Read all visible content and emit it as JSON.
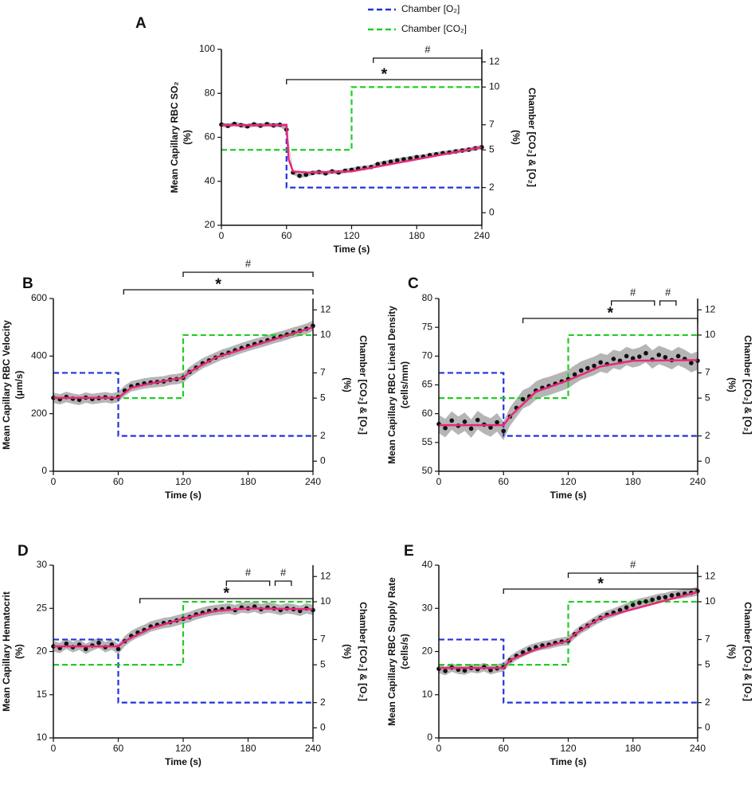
{
  "chart_data": [
    {
      "type": "line",
      "panel": "A",
      "ylabel": [
        "Mean Capillary RBC SO₂",
        "(%)"
      ],
      "y2label": [
        "Chamber [CO₂] & [O₂]",
        "(%)"
      ],
      "xlabel": "Time (s)",
      "xlim": [
        0,
        240
      ],
      "xticks": [
        0,
        60,
        120,
        180,
        240
      ],
      "ylim": [
        20,
        100
      ],
      "yticks": [
        20,
        40,
        60,
        80,
        100
      ],
      "y2lim": [
        -1,
        13
      ],
      "y2ticks": [
        0,
        2,
        5,
        7,
        10,
        12
      ],
      "series": [
        {
          "name": "Chamber [O₂]",
          "color": "#2233dd",
          "axis": "y2",
          "x": [
            0,
            60,
            60,
            240
          ],
          "values": [
            7,
            7,
            2,
            2
          ]
        },
        {
          "name": "Chamber [CO₂]",
          "color": "#22cc22",
          "axis": "y2",
          "x": [
            0,
            120,
            120,
            240
          ],
          "values": [
            5,
            5,
            10,
            10
          ]
        }
      ],
      "points": {
        "color": "#111111",
        "band_color": "#b5b5b5",
        "error": 1,
        "x": [
          0,
          6,
          12,
          18,
          24,
          30,
          36,
          42,
          48,
          54,
          60,
          66,
          72,
          78,
          84,
          90,
          96,
          102,
          108,
          114,
          120,
          126,
          132,
          138,
          144,
          150,
          156,
          162,
          168,
          174,
          180,
          186,
          192,
          198,
          204,
          210,
          216,
          222,
          228,
          234,
          240
        ],
        "values": [
          65.8,
          65.2,
          66.1,
          65.5,
          65.0,
          65.9,
          65.3,
          66.0,
          65.4,
          65.7,
          63.5,
          44.0,
          42.5,
          43.0,
          43.8,
          44.2,
          43.6,
          44.5,
          44.0,
          44.8,
          45.2,
          45.8,
          46.1,
          46.5,
          47.8,
          48.3,
          48.9,
          49.5,
          50.0,
          50.4,
          51.0,
          51.2,
          51.9,
          52.3,
          52.8,
          53.1,
          53.6,
          54.0,
          54.4,
          55.0,
          55.5
        ]
      },
      "fit": {
        "color": "#e8287a",
        "x": [
          0,
          60,
          62,
          66,
          80,
          120,
          240
        ],
        "values": [
          65.5,
          65.5,
          50,
          44.5,
          44,
          44.5,
          55.5
        ]
      },
      "brackets": [
        {
          "x": [
            60,
            240
          ],
          "label": "*"
        },
        {
          "x": [
            140,
            240
          ],
          "label": "#"
        }
      ]
    },
    {
      "type": "line",
      "panel": "B",
      "ylabel": [
        "Mean Capillary RBC Velocity",
        "(μm/s)"
      ],
      "y2label": [
        "Chamber [CO₂] & [O₂]",
        "(%)"
      ],
      "xlabel": "Time (s)",
      "xlim": [
        0,
        240
      ],
      "xticks": [
        0,
        60,
        120,
        180,
        240
      ],
      "ylim": [
        0,
        600
      ],
      "yticks": [
        0,
        200,
        400,
        600
      ],
      "y2lim": [
        -0.8,
        12.9
      ],
      "y2ticks": [
        0,
        2,
        5,
        7,
        10,
        12
      ],
      "series": [
        {
          "color": "#2233dd",
          "axis": "y2",
          "x": [
            0,
            60,
            60,
            240
          ],
          "values": [
            7,
            7,
            2,
            2
          ]
        },
        {
          "color": "#22cc22",
          "axis": "y2",
          "x": [
            0,
            120,
            120,
            240
          ],
          "values": [
            5,
            5,
            10,
            10
          ]
        }
      ],
      "points": {
        "color": "#111111",
        "band_color": "#b5b5b5",
        "error": 18,
        "x": [
          0,
          6,
          12,
          18,
          24,
          30,
          36,
          42,
          48,
          54,
          60,
          66,
          72,
          78,
          84,
          90,
          96,
          102,
          108,
          114,
          120,
          126,
          132,
          138,
          144,
          150,
          156,
          162,
          168,
          174,
          180,
          186,
          192,
          198,
          204,
          210,
          216,
          222,
          228,
          234,
          240
        ],
        "values": [
          255,
          250,
          258,
          252,
          248,
          256,
          251,
          254,
          257,
          253,
          258,
          280,
          295,
          300,
          305,
          308,
          310,
          312,
          318,
          320,
          325,
          345,
          360,
          375,
          385,
          395,
          405,
          412,
          420,
          428,
          435,
          442,
          448,
          455,
          462,
          468,
          475,
          482,
          488,
          495,
          505
        ]
      },
      "fit": {
        "color": "#e8287a",
        "x": [
          0,
          60,
          72,
          90,
          120,
          126,
          150,
          240
        ],
        "values": [
          255,
          255,
          290,
          305,
          325,
          345,
          395,
          500
        ]
      },
      "brackets": [
        {
          "x": [
            65,
            240
          ],
          "label": "*"
        },
        {
          "x": [
            120,
            240
          ],
          "label": "#"
        }
      ]
    },
    {
      "type": "line",
      "panel": "C",
      "ylabel": [
        "Mean Capillary RBC Lineal Density",
        "(cells/mm)"
      ],
      "y2label": [
        "Chamber [CO₂] & [O₂]",
        "(%)"
      ],
      "xlabel": "Time (s)",
      "xlim": [
        0,
        240
      ],
      "xticks": [
        0,
        60,
        120,
        180,
        240
      ],
      "ylim": [
        50,
        80
      ],
      "yticks": [
        50,
        55,
        60,
        65,
        70,
        75,
        80
      ],
      "y2lim": [
        -0.8,
        12.9
      ],
      "y2ticks": [
        0,
        2,
        5,
        7,
        10,
        12
      ],
      "series": [
        {
          "color": "#2233dd",
          "axis": "y2",
          "x": [
            0,
            60,
            60,
            240
          ],
          "values": [
            7,
            7,
            2,
            2
          ]
        },
        {
          "color": "#22cc22",
          "axis": "y2",
          "x": [
            0,
            120,
            120,
            240
          ],
          "values": [
            5,
            5,
            10,
            10
          ]
        }
      ],
      "points": {
        "color": "#111111",
        "band_color": "#b5b5b5",
        "error": 1.6,
        "x": [
          0,
          6,
          12,
          18,
          24,
          30,
          36,
          42,
          48,
          54,
          60,
          66,
          72,
          78,
          84,
          90,
          96,
          102,
          108,
          114,
          120,
          126,
          132,
          138,
          144,
          150,
          156,
          162,
          168,
          174,
          180,
          186,
          192,
          198,
          204,
          210,
          216,
          222,
          228,
          234,
          240
        ],
        "values": [
          58.2,
          57.5,
          58.8,
          57.9,
          58.6,
          57.4,
          58.9,
          58.1,
          57.6,
          58.5,
          57.0,
          59.5,
          61.0,
          62.5,
          63.0,
          64.0,
          64.5,
          64.8,
          65.2,
          65.6,
          66.0,
          66.8,
          67.5,
          67.9,
          68.3,
          68.9,
          68.6,
          69.5,
          69.2,
          70.0,
          69.6,
          69.9,
          70.5,
          69.4,
          70.2,
          69.8,
          69.3,
          70.0,
          69.5,
          68.8,
          69.2
        ]
      },
      "fit": {
        "color": "#e8287a",
        "x": [
          0,
          60,
          66,
          90,
          120,
          150,
          180,
          240
        ],
        "values": [
          58,
          58,
          59.5,
          63.8,
          65.8,
          68.2,
          69.2,
          69.3
        ]
      },
      "brackets": [
        {
          "x": [
            78,
            240
          ],
          "label": "*"
        },
        {
          "x": [
            160,
            200
          ],
          "label": "#"
        },
        {
          "x": [
            205,
            220
          ],
          "label": "#"
        }
      ]
    },
    {
      "type": "line",
      "panel": "D",
      "ylabel": [
        "Mean Capillary Hematocrit",
        "(%)"
      ],
      "y2label": [
        "Chamber [CO₂] & [O₂]",
        "(%)"
      ],
      "xlabel": "Time (s)",
      "xlim": [
        0,
        240
      ],
      "xticks": [
        0,
        60,
        120,
        180,
        240
      ],
      "ylim": [
        10,
        30
      ],
      "yticks": [
        10,
        15,
        20,
        25,
        30
      ],
      "y2lim": [
        -0.8,
        12.9
      ],
      "y2ticks": [
        0,
        2,
        5,
        7,
        10,
        12
      ],
      "series": [
        {
          "color": "#2233dd",
          "axis": "y2",
          "x": [
            0,
            60,
            60,
            240
          ],
          "values": [
            7,
            7,
            2,
            2
          ]
        },
        {
          "color": "#22cc22",
          "axis": "y2",
          "x": [
            0,
            120,
            120,
            240
          ],
          "values": [
            5,
            5,
            10,
            10
          ]
        }
      ],
      "points": {
        "color": "#111111",
        "band_color": "#b5b5b5",
        "error": 0.6,
        "x": [
          0,
          6,
          12,
          18,
          24,
          30,
          36,
          42,
          48,
          54,
          60,
          66,
          72,
          78,
          84,
          90,
          96,
          102,
          108,
          114,
          120,
          126,
          132,
          138,
          144,
          150,
          156,
          162,
          168,
          174,
          180,
          186,
          192,
          198,
          204,
          210,
          216,
          222,
          228,
          234,
          240
        ],
        "values": [
          20.6,
          20.4,
          20.9,
          20.5,
          20.8,
          20.3,
          20.7,
          21.0,
          20.5,
          20.8,
          20.3,
          21.2,
          21.8,
          22.2,
          22.5,
          22.9,
          23.1,
          23.3,
          23.4,
          23.6,
          23.8,
          24.0,
          24.3,
          24.5,
          24.7,
          24.8,
          24.9,
          25.0,
          24.8,
          25.1,
          25.0,
          25.2,
          24.9,
          25.1,
          25.0,
          24.8,
          25.0,
          24.9,
          24.7,
          25.0,
          24.8
        ]
      },
      "fit": {
        "color": "#e8287a",
        "x": [
          0,
          60,
          66,
          90,
          120,
          150,
          180,
          240
        ],
        "values": [
          20.6,
          20.6,
          21.2,
          22.7,
          23.8,
          24.7,
          25,
          24.9
        ]
      },
      "brackets": [
        {
          "x": [
            80,
            240
          ],
          "label": "*"
        },
        {
          "x": [
            160,
            200
          ],
          "label": "#"
        },
        {
          "x": [
            205,
            220
          ],
          "label": "#"
        }
      ]
    },
    {
      "type": "line",
      "panel": "E",
      "ylabel": [
        "Mean Capillary RBC Supply Rate",
        "(cells/s)"
      ],
      "y2label": [
        "Chamber [CO₂] & [O₂]",
        "(%)"
      ],
      "xlabel": "Time (s)",
      "xlim": [
        0,
        240
      ],
      "xticks": [
        0,
        60,
        120,
        180,
        240
      ],
      "ylim": [
        0,
        40
      ],
      "yticks": [
        0,
        10,
        20,
        30,
        40
      ],
      "y2lim": [
        -0.8,
        12.9
      ],
      "y2ticks": [
        0,
        2,
        5,
        7,
        10,
        12
      ],
      "series": [
        {
          "color": "#2233dd",
          "axis": "y2",
          "x": [
            0,
            60,
            60,
            240
          ],
          "values": [
            7,
            7,
            2,
            2
          ]
        },
        {
          "color": "#22cc22",
          "axis": "y2",
          "x": [
            0,
            120,
            120,
            240
          ],
          "values": [
            5,
            5,
            10,
            10
          ]
        }
      ],
      "points": {
        "color": "#111111",
        "band_color": "#b5b5b5",
        "error": 1,
        "x": [
          0,
          6,
          12,
          18,
          24,
          30,
          36,
          42,
          48,
          54,
          60,
          66,
          72,
          78,
          84,
          90,
          96,
          102,
          108,
          114,
          120,
          126,
          132,
          138,
          144,
          150,
          156,
          162,
          168,
          174,
          180,
          186,
          192,
          198,
          204,
          210,
          216,
          222,
          228,
          234,
          240
        ],
        "values": [
          16.0,
          15.5,
          16.3,
          15.8,
          15.6,
          16.2,
          15.9,
          16.4,
          15.7,
          16.1,
          16.4,
          18.0,
          19.0,
          19.8,
          20.5,
          21.0,
          21.4,
          21.6,
          22.0,
          22.3,
          22.5,
          24.0,
          25.2,
          26.0,
          27.0,
          27.8,
          28.5,
          29.0,
          29.6,
          30.2,
          30.8,
          31.3,
          31.6,
          32.0,
          32.4,
          32.6,
          33.0,
          33.2,
          33.4,
          33.6,
          34.0
        ]
      },
      "fit": {
        "color": "#e8287a",
        "x": [
          0,
          60,
          66,
          90,
          120,
          126,
          150,
          240
        ],
        "values": [
          16.2,
          16.2,
          18,
          20.5,
          22.5,
          24,
          27.8,
          33.8
        ]
      },
      "brackets": [
        {
          "x": [
            60,
            240
          ],
          "label": "*"
        },
        {
          "x": [
            120,
            240
          ],
          "label": "#"
        }
      ]
    }
  ]
}
